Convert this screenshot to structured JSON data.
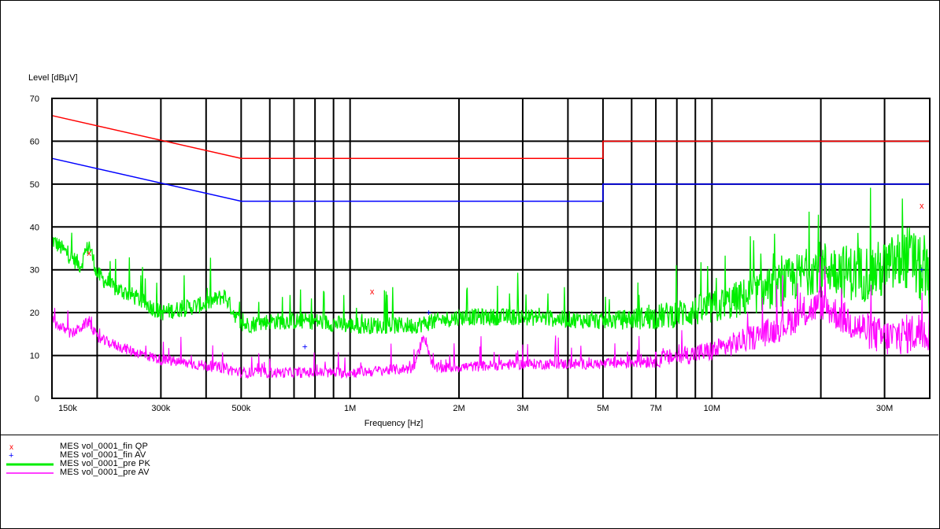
{
  "chart_data": {
    "type": "line",
    "ylabel": "Level [dBµV]",
    "xlabel": "Frequency [Hz]",
    "xscale": "log",
    "xlim": [
      150000,
      40000000
    ],
    "ylim": [
      0,
      70
    ],
    "y_ticks": [
      0,
      10,
      20,
      30,
      40,
      50,
      60,
      70
    ],
    "x_tick_labels": [
      {
        "value": 150000,
        "label": "150k"
      },
      {
        "value": 300000,
        "label": "300k"
      },
      {
        "value": 500000,
        "label": "500k"
      },
      {
        "value": 1000000,
        "label": "1M"
      },
      {
        "value": 2000000,
        "label": "2M"
      },
      {
        "value": 3000000,
        "label": "3M"
      },
      {
        "value": 5000000,
        "label": "5M"
      },
      {
        "value": 7000000,
        "label": "7M"
      },
      {
        "value": 10000000,
        "label": "10M"
      },
      {
        "value": 30000000,
        "label": "30M"
      }
    ],
    "limit_lines": [
      {
        "color": "#ff0000",
        "points": [
          [
            150000,
            66
          ],
          [
            500000,
            56
          ],
          [
            5000000,
            56
          ],
          [
            5000000,
            60
          ],
          [
            40000000,
            60
          ]
        ]
      },
      {
        "color": "#0000ff",
        "points": [
          [
            150000,
            56
          ],
          [
            500000,
            46
          ],
          [
            5000000,
            46
          ],
          [
            5000000,
            50
          ],
          [
            40000000,
            50
          ]
        ]
      }
    ],
    "series": [
      {
        "name": "MES  vol_0001_pre PK",
        "color": "#00ee00",
        "envelope": [
          [
            150000,
            37
          ],
          [
            180000,
            31
          ],
          [
            190000,
            36
          ],
          [
            200000,
            29
          ],
          [
            220000,
            26
          ],
          [
            250000,
            24
          ],
          [
            300000,
            20
          ],
          [
            400000,
            22
          ],
          [
            450000,
            24
          ],
          [
            500000,
            17
          ],
          [
            600000,
            18
          ],
          [
            800000,
            18
          ],
          [
            1000000,
            17
          ],
          [
            1500000,
            17
          ],
          [
            2000000,
            19
          ],
          [
            3000000,
            19
          ],
          [
            5000000,
            18
          ],
          [
            7000000,
            19
          ],
          [
            10000000,
            21
          ],
          [
            15000000,
            26
          ],
          [
            20000000,
            31
          ],
          [
            25000000,
            29
          ],
          [
            30000000,
            30
          ],
          [
            35000000,
            33
          ],
          [
            40000000,
            27
          ]
        ]
      },
      {
        "name": "MES  vol_0001_pre AV",
        "color": "#ff00ff",
        "envelope": [
          [
            150000,
            18
          ],
          [
            170000,
            15
          ],
          [
            190000,
            18
          ],
          [
            200000,
            14
          ],
          [
            250000,
            11
          ],
          [
            300000,
            9
          ],
          [
            450000,
            7
          ],
          [
            500000,
            6
          ],
          [
            700000,
            6
          ],
          [
            1000000,
            6
          ],
          [
            1500000,
            7
          ],
          [
            1600000,
            15
          ],
          [
            1700000,
            7
          ],
          [
            3000000,
            8
          ],
          [
            5000000,
            8
          ],
          [
            7000000,
            9
          ],
          [
            10000000,
            11
          ],
          [
            15000000,
            16
          ],
          [
            20000000,
            22
          ],
          [
            25000000,
            17
          ],
          [
            30000000,
            14
          ],
          [
            40000000,
            16
          ]
        ]
      }
    ],
    "markers": [
      {
        "name": "MES  vol_0001_fin QP",
        "symbol": "x",
        "color": "#ff0000",
        "points": [
          [
            190000,
            34
          ],
          [
            1150000,
            25
          ],
          [
            38000000,
            45
          ]
        ]
      },
      {
        "name": "MES  vol_0001_fin AV",
        "symbol": "+",
        "color": "#0000ff",
        "points": [
          [
            1650000,
            20
          ],
          [
            750000,
            12
          ],
          [
            38000000,
            30
          ]
        ]
      }
    ]
  },
  "legend": [
    {
      "label": "MES  vol_0001_fin QP",
      "kind": "marker-x",
      "color": "#ff0000"
    },
    {
      "label": "MES  vol_0001_fin AV",
      "kind": "marker-plus",
      "color": "#0000ff"
    },
    {
      "label": "MES  vol_0001_pre PK",
      "kind": "line",
      "color": "#00ee00"
    },
    {
      "label": "MES  vol_0001_pre AV",
      "kind": "line",
      "color": "#ff00ff"
    }
  ]
}
